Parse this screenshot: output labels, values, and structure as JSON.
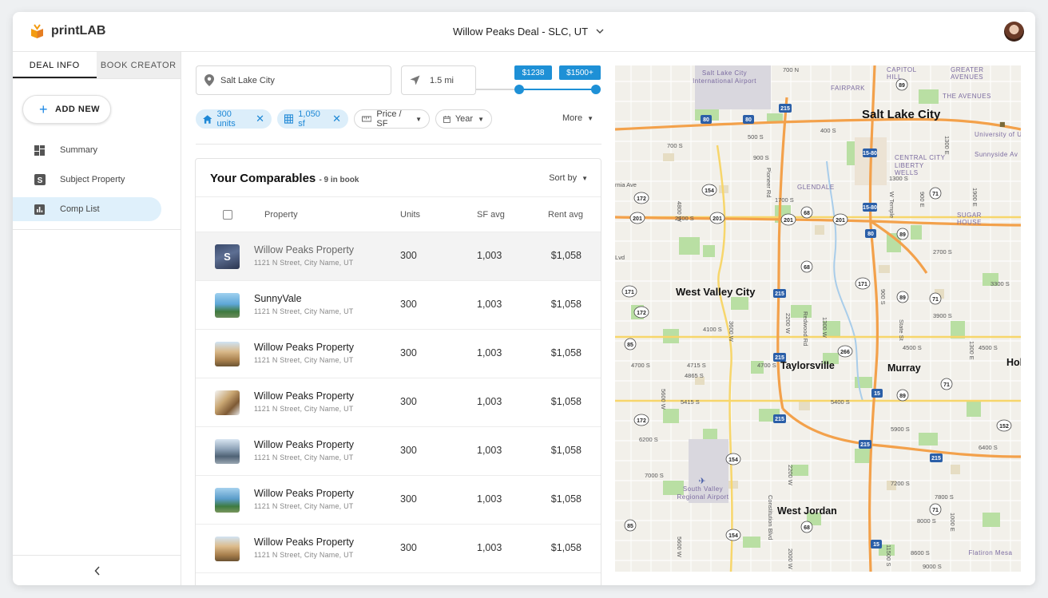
{
  "header": {
    "app_name": "printLAB",
    "deal_title": "Willow Peaks Deal - SLC, UT"
  },
  "sidebar": {
    "tabs": [
      "DEAL INFO",
      "BOOK CREATOR"
    ],
    "add_new": "ADD NEW",
    "nav": [
      {
        "label": "Summary",
        "icon": "dashboard-icon"
      },
      {
        "label": "Subject Property",
        "icon": "subject-s-icon"
      },
      {
        "label": "Comp List",
        "icon": "bar-chart-icon"
      }
    ],
    "collapse_glyph": "‹"
  },
  "filters": {
    "location": "Salt Lake City",
    "radius": "1.5 mi",
    "price_min_label": "$1238",
    "price_max_label": "$1500+",
    "chips": [
      {
        "label": "300 units",
        "icon": "home-icon"
      },
      {
        "label": "1,050 sf",
        "icon": "grid-icon"
      }
    ],
    "dropdowns": [
      {
        "label": "Price / SF",
        "icon": "ruler-icon"
      },
      {
        "label": "Year",
        "icon": "calendar-icon"
      }
    ],
    "more": "More"
  },
  "comps": {
    "title": "Your Comparables",
    "count": "- 9 in book",
    "sort": "Sort by",
    "columns": {
      "property": "Property",
      "units": "Units",
      "sf": "SF avg",
      "rent": "Rent avg"
    },
    "rows": [
      {
        "name": "Willow Peaks Property",
        "address": "1121 N Street, City Name, UT",
        "units": "300",
        "sf": "1,003",
        "rent": "$1,058",
        "badge": "S",
        "selected": true
      },
      {
        "name": "SunnyVale",
        "address": "1121 N Street, City Name, UT",
        "units": "300",
        "sf": "1,003",
        "rent": "$1,058"
      },
      {
        "name": "Willow Peaks Property",
        "address": "1121 N Street, City Name, UT",
        "units": "300",
        "sf": "1,003",
        "rent": "$1,058"
      },
      {
        "name": "Willow Peaks Property",
        "address": "1121 N Street, City Name, UT",
        "units": "300",
        "sf": "1,003",
        "rent": "$1,058"
      },
      {
        "name": "Willow Peaks Property",
        "address": "1121 N Street, City Name, UT",
        "units": "300",
        "sf": "1,003",
        "rent": "$1,058"
      },
      {
        "name": "Willow Peaks Property",
        "address": "1121 N Street, City Name, UT",
        "units": "300",
        "sf": "1,003",
        "rent": "$1,058"
      },
      {
        "name": "Willow Peaks Property",
        "address": "1121 N Street, City Name, UT",
        "units": "300",
        "sf": "1,003",
        "rent": "$1,058"
      }
    ]
  },
  "map": {
    "cities": [
      "Salt Lake City",
      "West Valley City",
      "Taylorsville",
      "Murray",
      "West Jordan",
      "Hol"
    ],
    "areas": [
      "Salt Lake City International Airport",
      "FAIRPARK",
      "CAPITOL HILL",
      "GREATER AVENUES",
      "THE AVENUES",
      "CENTRAL CITY",
      "LIBERTY WELLS",
      "GLENDALE",
      "SUGAR HOUSE",
      "University of U",
      "Sunnyside Av",
      "South Valley Regional Airport",
      "Flatiron Mesa"
    ],
    "streets": [
      "700 N",
      "400 S",
      "500 S",
      "700 S",
      "900 S",
      "1300 S",
      "1700 S",
      "2100 S",
      "2700 S",
      "3300 S",
      "3900 S",
      "4100 S",
      "4500 S",
      "4700 S",
      "4715 S",
      "4865 S",
      "5400 S",
      "5415 S",
      "5900 S",
      "6200 S",
      "6400 S",
      "7000 S",
      "7200 S",
      "7800 S",
      "8000 S",
      "8600 S",
      "9000 S",
      "11500 S",
      "4800 W",
      "3600 W",
      "2200 W",
      "1300 W",
      "Redwood Rd",
      "Pioneer Rd",
      "W Temple",
      "900 E",
      "1300 E",
      "1900 E",
      "State St",
      "5600 W",
      "Constitution Blvd",
      "1000 E",
      "2000 W",
      "Lvd",
      "rnia Ave"
    ],
    "shields": [
      "80",
      "215",
      "15",
      "154",
      "172",
      "201",
      "68",
      "71",
      "89",
      "171",
      "266",
      "85",
      "152",
      "173",
      "175"
    ]
  }
}
